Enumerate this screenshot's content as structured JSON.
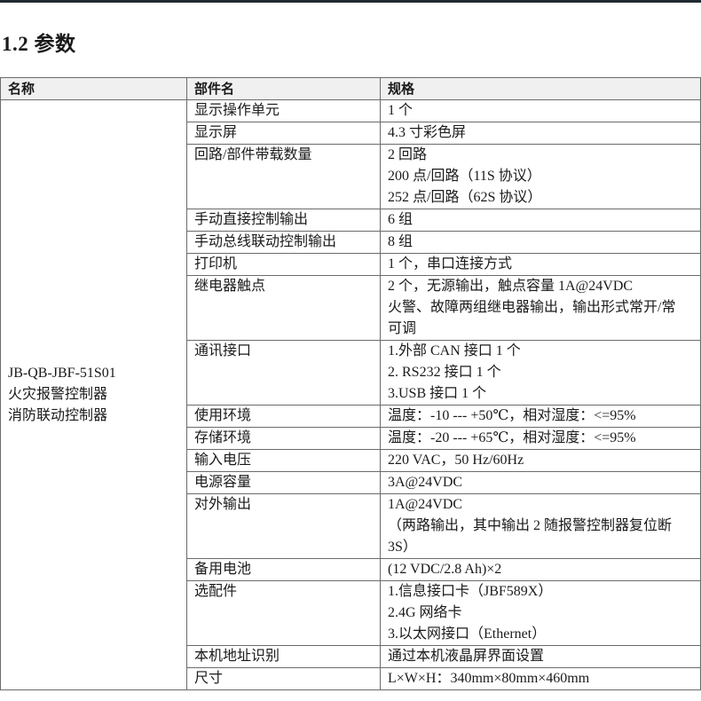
{
  "section_title": "1.2 参数",
  "table": {
    "headers": [
      "名称",
      "部件名",
      "规格"
    ],
    "name_lines": [
      "JB-QB-JBF-51S01",
      "火灾报警控制器",
      "消防联动控制器"
    ],
    "rows": [
      {
        "part": "显示操作单元",
        "spec": [
          "1 个"
        ]
      },
      {
        "part": "显示屏",
        "spec": [
          "4.3 寸彩色屏"
        ]
      },
      {
        "part": "回路/部件带载数量",
        "spec": [
          "2 回路",
          "200 点/回路（11S 协议）",
          "252 点/回路（62S 协议）"
        ]
      },
      {
        "part": "手动直接控制输出",
        "spec": [
          "6 组"
        ]
      },
      {
        "part": "手动总线联动控制输出",
        "spec": [
          "8 组"
        ]
      },
      {
        "part": "打印机",
        "spec": [
          "1 个，串口连接方式"
        ]
      },
      {
        "part": "继电器触点",
        "spec": [
          "2 个，无源输出，触点容量 1A@24VDC",
          "火警、故障两组继电器输出，输出形式常开/常",
          "可调"
        ]
      },
      {
        "part": "通讯接口",
        "spec": [
          "1.外部 CAN 接口 1 个",
          "2. RS232 接口 1 个",
          "3.USB 接口  1 个"
        ]
      },
      {
        "part": "使用环境",
        "spec": [
          "温度：-10 --- +50℃，相对湿度：<=95%"
        ]
      },
      {
        "part": "存储环境",
        "spec": [
          "温度：-20 --- +65℃，相对湿度：<=95%"
        ]
      },
      {
        "part": "输入电压",
        "spec": [
          "220 VAC，50 Hz/60Hz"
        ]
      },
      {
        "part": "电源容量",
        "spec": [
          "3A@24VDC"
        ]
      },
      {
        "part": "对外输出",
        "spec": [
          "1A@24VDC",
          "（两路输出，其中输出 2 随报警控制器复位断",
          "3S）"
        ]
      },
      {
        "part": "备用电池",
        "spec": [
          "(12 VDC/2.8 Ah)×2"
        ]
      },
      {
        "part": "选配件",
        "spec": [
          "1.信息接口卡（JBF589X）",
          "2.4G 网络卡",
          "3.以太网接口（Ethernet）"
        ]
      },
      {
        "part": "本机地址识别",
        "spec": [
          "通过本机液晶屏界面设置"
        ]
      },
      {
        "part": "尺寸",
        "spec": [
          "L×W×H：340mm×80mm×460mm"
        ]
      }
    ]
  }
}
